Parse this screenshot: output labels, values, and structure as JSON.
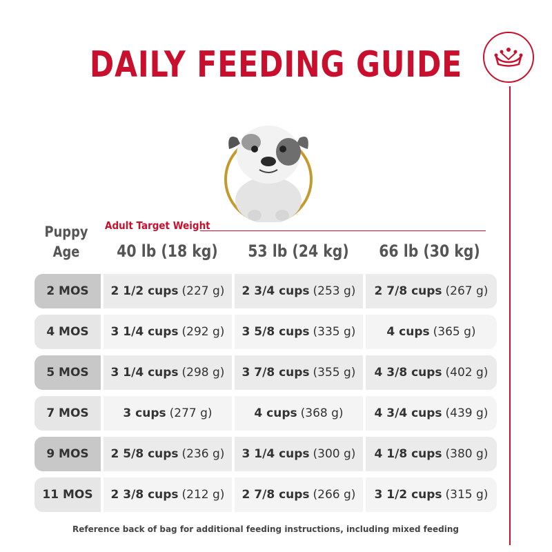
{
  "title": "DAILY FEEDING GUIDE",
  "header": {
    "age_label_line1": "Puppy",
    "age_label_line2": "Age",
    "weight_label": "Adult Target Weight",
    "columns": [
      "40 lb (18 kg)",
      "53 lb (24 kg)",
      "66 lb (30 kg)"
    ]
  },
  "rows": [
    {
      "age": "2 MOS",
      "cells": [
        {
          "cups": "2 1/2 cups",
          "grams": "(227 g)"
        },
        {
          "cups": "2 3/4 cups",
          "grams": "(253 g)"
        },
        {
          "cups": "2 7/8 cups",
          "grams": "(267 g)"
        }
      ]
    },
    {
      "age": "4 MOS",
      "cells": [
        {
          "cups": "3 1/4 cups",
          "grams": "(292 g)"
        },
        {
          "cups": "3 5/8 cups",
          "grams": "(335 g)"
        },
        {
          "cups": "4 cups",
          "grams": "(365 g)"
        }
      ]
    },
    {
      "age": "5 MOS",
      "cells": [
        {
          "cups": "3 1/4 cups",
          "grams": "(298 g)"
        },
        {
          "cups": "3 7/8 cups",
          "grams": "(355 g)"
        },
        {
          "cups": "4 3/8 cups",
          "grams": "(402 g)"
        }
      ]
    },
    {
      "age": "7 MOS",
      "cells": [
        {
          "cups": "3 cups",
          "grams": "(277 g)"
        },
        {
          "cups": "4 cups",
          "grams": "(368 g)"
        },
        {
          "cups": "4 3/4 cups",
          "grams": "(439 g)"
        }
      ]
    },
    {
      "age": "9 MOS",
      "cells": [
        {
          "cups": "2 5/8 cups",
          "grams": "(236 g)"
        },
        {
          "cups": "3 1/4 cups",
          "grams": "(300 g)"
        },
        {
          "cups": "4 1/8 cups",
          "grams": "(380 g)"
        }
      ]
    },
    {
      "age": "11 MOS",
      "cells": [
        {
          "cups": "2 3/8 cups",
          "grams": "(212 g)"
        },
        {
          "cups": "2 7/8 cups",
          "grams": "(266 g)"
        },
        {
          "cups": "3 1/2 cups",
          "grams": "(315 g)"
        }
      ]
    }
  ],
  "footnote": "Reference back of bag for additional feeding instructions, including mixed feeding",
  "colors": {
    "brand_red": "#c8102e",
    "gold_ring": "#c49a2c",
    "dark_row": "#c8c8c8",
    "light_row": "#e6e6e6"
  },
  "icons": {
    "logo": "crown-icon",
    "photo": "puppy-photo"
  }
}
